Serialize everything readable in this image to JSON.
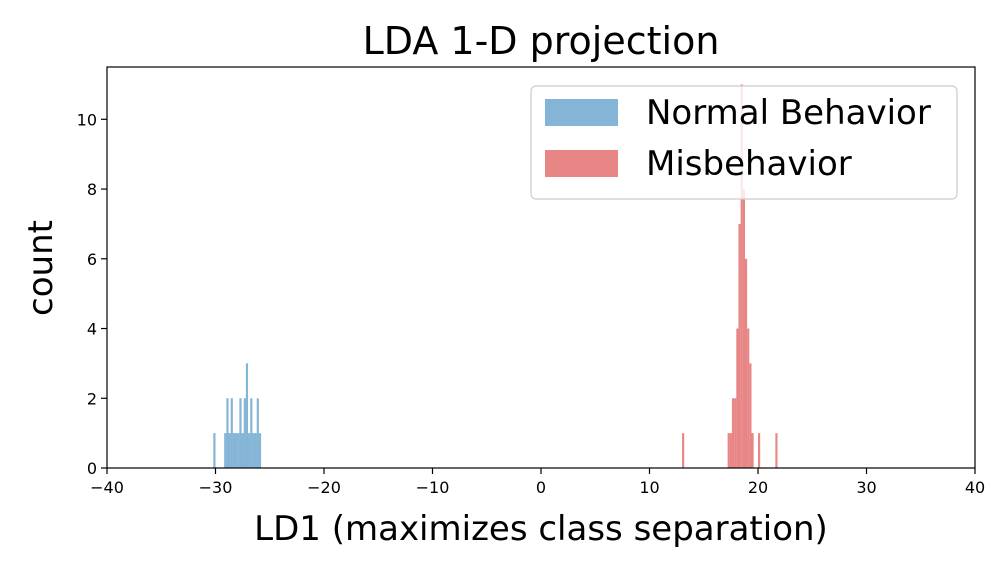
{
  "chart_data": {
    "type": "histogram",
    "title": "LDA 1-D projection",
    "xlabel": "LD1 (maximizes class separation)",
    "ylabel": "count",
    "xlim": [
      -40,
      40
    ],
    "ylim": [
      0,
      11.5
    ],
    "xticks": [
      -40,
      -30,
      -20,
      -10,
      0,
      10,
      20,
      30,
      40
    ],
    "xtick_labels": [
      "−40",
      "−30",
      "−20",
      "−10",
      "0",
      "10",
      "20",
      "30",
      "40"
    ],
    "yticks": [
      0,
      2,
      4,
      6,
      8,
      10
    ],
    "ytick_labels": [
      "0",
      "2",
      "4",
      "6",
      "8",
      "10"
    ],
    "bin_width": 0.2,
    "legend_position": "top-right",
    "series": [
      {
        "name": "Normal Behavior",
        "color": "#1f77b4",
        "opacity": 0.55,
        "bins": [
          {
            "x": -30.2,
            "count": 1
          },
          {
            "x": -29.2,
            "count": 1
          },
          {
            "x": -29.0,
            "count": 2
          },
          {
            "x": -28.8,
            "count": 1
          },
          {
            "x": -28.6,
            "count": 2
          },
          {
            "x": -28.4,
            "count": 1
          },
          {
            "x": -28.2,
            "count": 1
          },
          {
            "x": -28.0,
            "count": 1
          },
          {
            "x": -27.8,
            "count": 2
          },
          {
            "x": -27.6,
            "count": 1
          },
          {
            "x": -27.4,
            "count": 2
          },
          {
            "x": -27.2,
            "count": 3
          },
          {
            "x": -27.0,
            "count": 1
          },
          {
            "x": -26.8,
            "count": 2
          },
          {
            "x": -26.6,
            "count": 1
          },
          {
            "x": -26.4,
            "count": 1
          },
          {
            "x": -26.2,
            "count": 2
          },
          {
            "x": -26.0,
            "count": 1
          }
        ]
      },
      {
        "name": "Misbehavior",
        "color": "#e05c5c",
        "opacity": 0.75,
        "bins": [
          {
            "x": 13.0,
            "count": 1
          },
          {
            "x": 17.2,
            "count": 1
          },
          {
            "x": 17.4,
            "count": 1
          },
          {
            "x": 17.6,
            "count": 2
          },
          {
            "x": 17.8,
            "count": 2
          },
          {
            "x": 18.0,
            "count": 4
          },
          {
            "x": 18.2,
            "count": 7
          },
          {
            "x": 18.4,
            "count": 11
          },
          {
            "x": 18.6,
            "count": 8
          },
          {
            "x": 18.8,
            "count": 6
          },
          {
            "x": 19.0,
            "count": 4
          },
          {
            "x": 19.2,
            "count": 3
          },
          {
            "x": 19.4,
            "count": 1
          },
          {
            "x": 20.0,
            "count": 1
          },
          {
            "x": 21.6,
            "count": 1
          }
        ]
      }
    ]
  }
}
